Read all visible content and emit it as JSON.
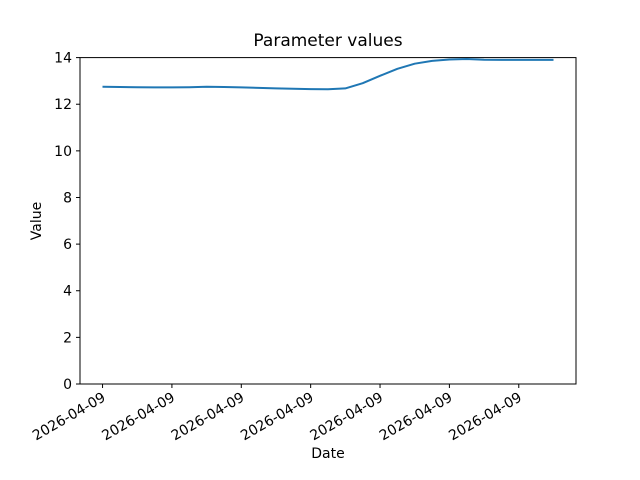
{
  "figure": {
    "background": "#ffffff"
  },
  "chart_data": {
    "type": "line",
    "title": "Parameter values",
    "xlabel": "Date",
    "ylabel": "Value",
    "ylim": [
      0,
      14
    ],
    "yticks": [
      0,
      2,
      4,
      6,
      8,
      10,
      12,
      14
    ],
    "grid": false,
    "legend": "none",
    "x": [
      0,
      1,
      2,
      3,
      4,
      5,
      6,
      7,
      8,
      9,
      10,
      11,
      12,
      13,
      14,
      15,
      16,
      17,
      18,
      19,
      20,
      21,
      22,
      23,
      24,
      25,
      26
    ],
    "xticks": {
      "positions": [
        0,
        4,
        8,
        12,
        16,
        20,
        24
      ],
      "labels": [
        "2026-04-09",
        "2026-04-09",
        "2026-04-09",
        "2026-04-09",
        "2026-04-09",
        "2026-04-09",
        "2026-04-09"
      ],
      "rotation_deg": 30
    },
    "series": [
      {
        "name": "Parameter",
        "color": "#1f77b4",
        "values": [
          12.75,
          12.74,
          12.73,
          12.72,
          12.72,
          12.73,
          12.75,
          12.74,
          12.72,
          12.7,
          12.68,
          12.66,
          12.65,
          12.64,
          12.68,
          12.9,
          13.22,
          13.52,
          13.74,
          13.86,
          13.92,
          13.94,
          13.91,
          13.9,
          13.9,
          13.9,
          13.9
        ]
      }
    ],
    "axis_color": "#000000"
  }
}
